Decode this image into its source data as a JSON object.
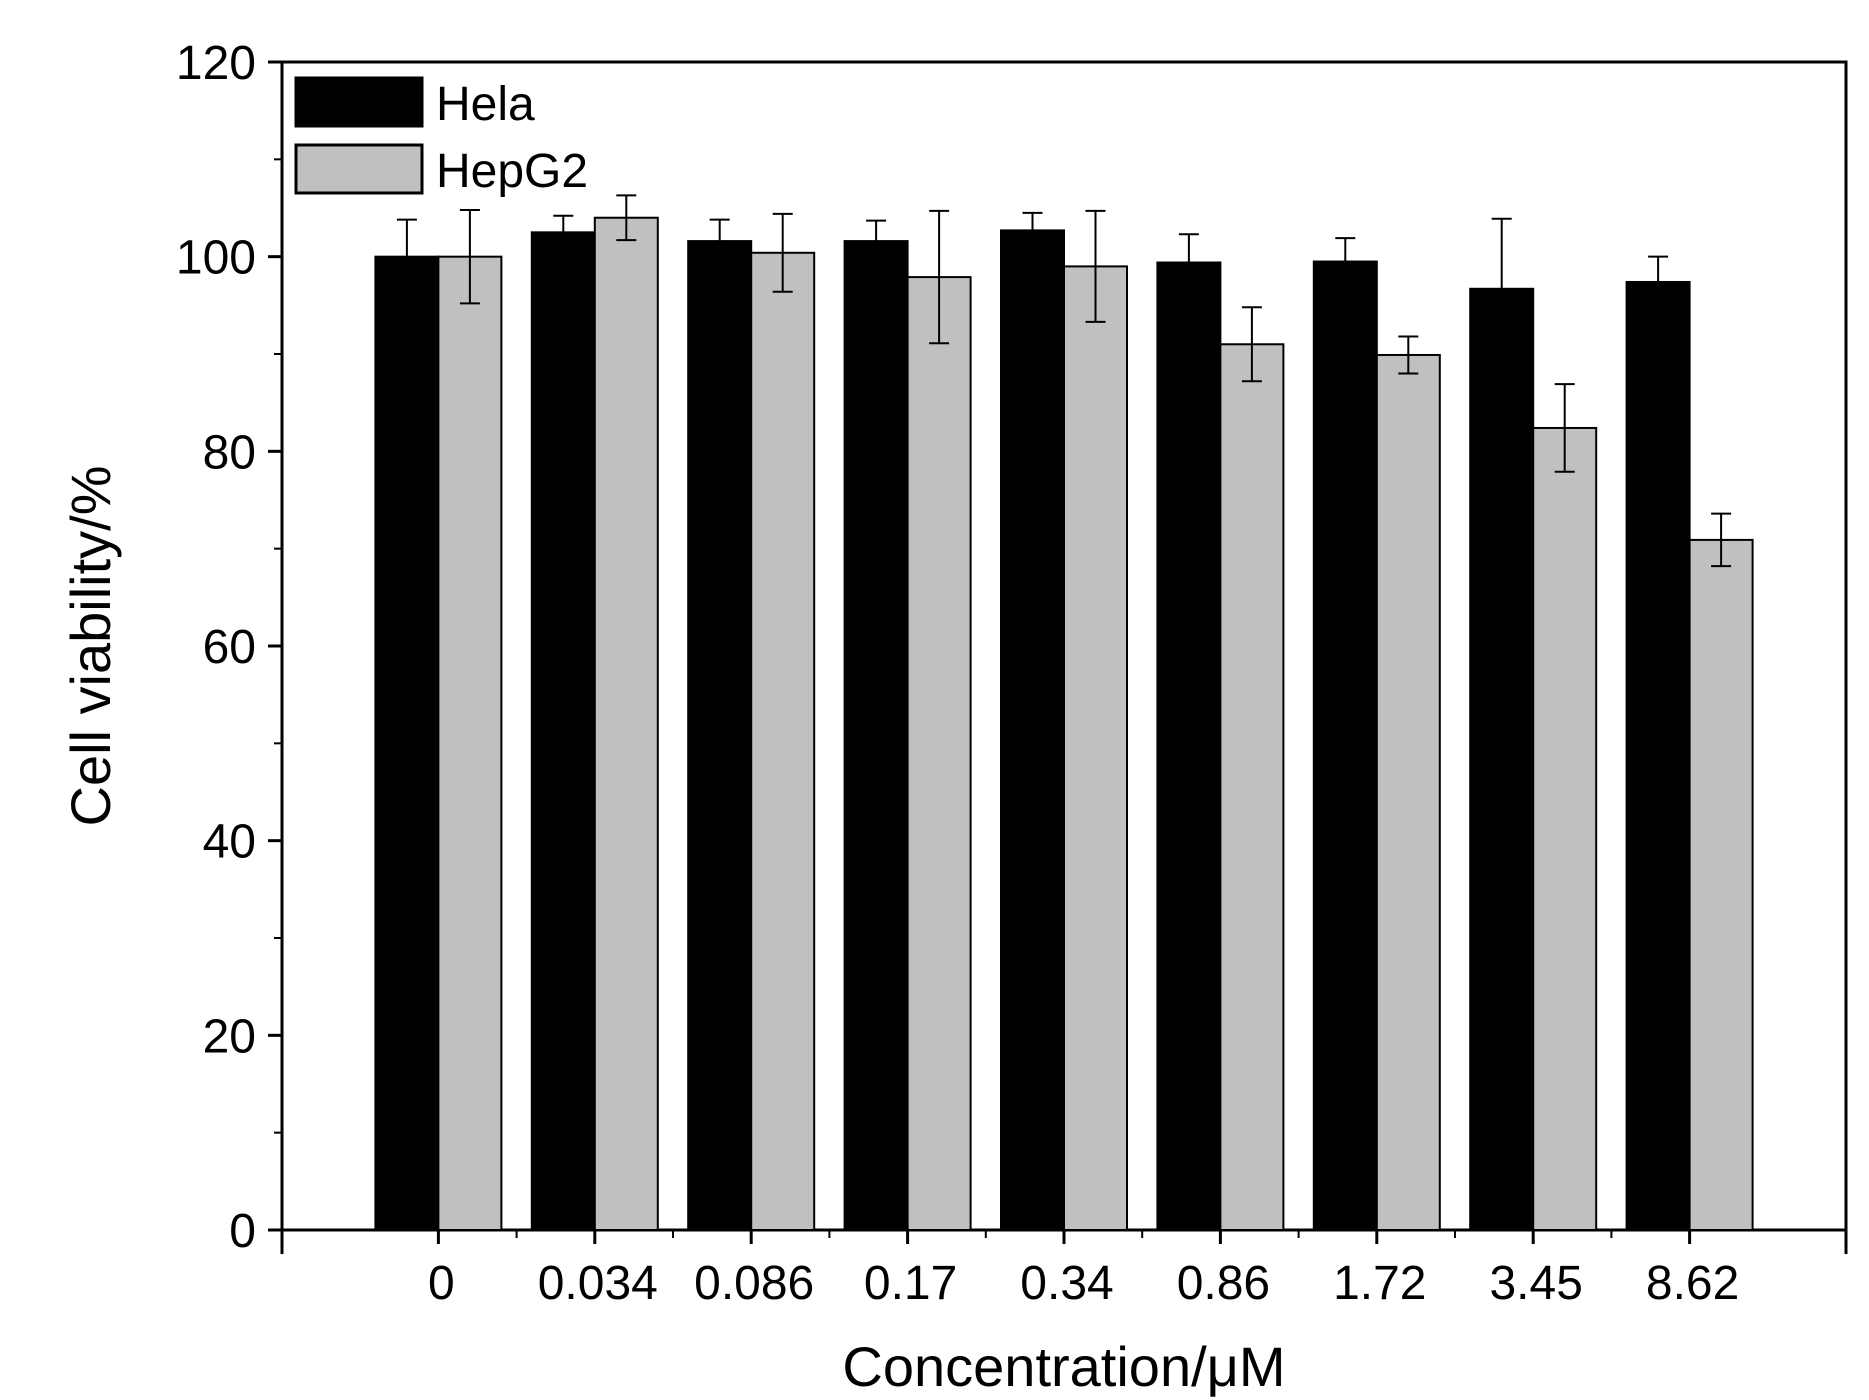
{
  "chart_data": {
    "type": "bar",
    "title": "",
    "xlabel": "Concentration/μM",
    "ylabel": "Cell viability/%",
    "ylim": [
      0,
      120
    ],
    "yticks": [
      0,
      20,
      40,
      60,
      80,
      100,
      120
    ],
    "categories": [
      "0",
      "0.034",
      "0.086",
      "0.17",
      "0.34",
      "0.86",
      "1.72",
      "3.45",
      "8.62"
    ],
    "legend_position": "top-left",
    "grid": false,
    "series": [
      {
        "name": "Hela",
        "color": "#000000",
        "values": [
          100,
          102.5,
          101.6,
          101.6,
          102.7,
          99.4,
          99.5,
          96.7,
          97.4
        ],
        "errors": [
          3.8,
          1.7,
          2.2,
          2.1,
          1.8,
          2.9,
          2.4,
          7.2,
          2.6
        ]
      },
      {
        "name": "HepG2",
        "color": "#c0c0c0",
        "values": [
          100,
          104.0,
          100.4,
          97.9,
          99.0,
          91.0,
          89.9,
          82.4,
          70.9
        ],
        "errors": [
          4.8,
          2.3,
          4.0,
          6.8,
          5.7,
          3.8,
          1.9,
          4.5,
          2.7
        ]
      }
    ]
  }
}
